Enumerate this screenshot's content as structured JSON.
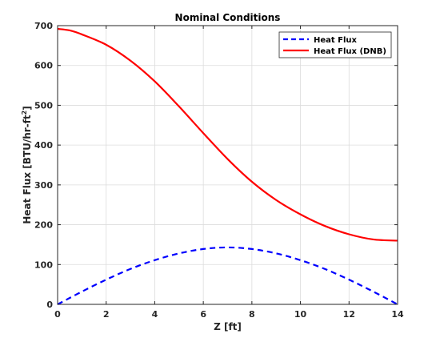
{
  "chart_data": {
    "type": "line",
    "title": "Nominal Conditions",
    "xlabel": "Z [ft]",
    "ylabel": {
      "main": "Heat Flux [BTU/hr-ft",
      "sup": "2",
      "end": "]"
    },
    "xlim": [
      0,
      14
    ],
    "ylim": [
      0,
      700
    ],
    "xticks": [
      0,
      2,
      4,
      6,
      8,
      10,
      12,
      14
    ],
    "yticks": [
      0,
      100,
      200,
      300,
      400,
      500,
      600,
      700
    ],
    "grid": true,
    "legend_position": "top-right",
    "series": [
      {
        "name": "Heat Flux",
        "color": "#0000ff",
        "style": "dashed",
        "x": [
          0,
          1,
          2,
          3,
          4,
          5,
          6,
          7,
          8,
          9,
          10,
          11,
          12,
          13,
          14
        ],
        "y": [
          0,
          32,
          62,
          89,
          111,
          128,
          139,
          143,
          139,
          128,
          111,
          89,
          62,
          32,
          0
        ]
      },
      {
        "name": "Heat Flux (DNB)",
        "color": "#ff0000",
        "style": "solid",
        "x": [
          0,
          0.5,
          1,
          2,
          3,
          4,
          5,
          6,
          7,
          8,
          9,
          10,
          11,
          12,
          13,
          14
        ],
        "y": [
          692,
          688,
          678,
          652,
          612,
          560,
          497,
          430,
          365,
          308,
          262,
          226,
          197,
          176,
          163,
          160
        ]
      }
    ]
  }
}
